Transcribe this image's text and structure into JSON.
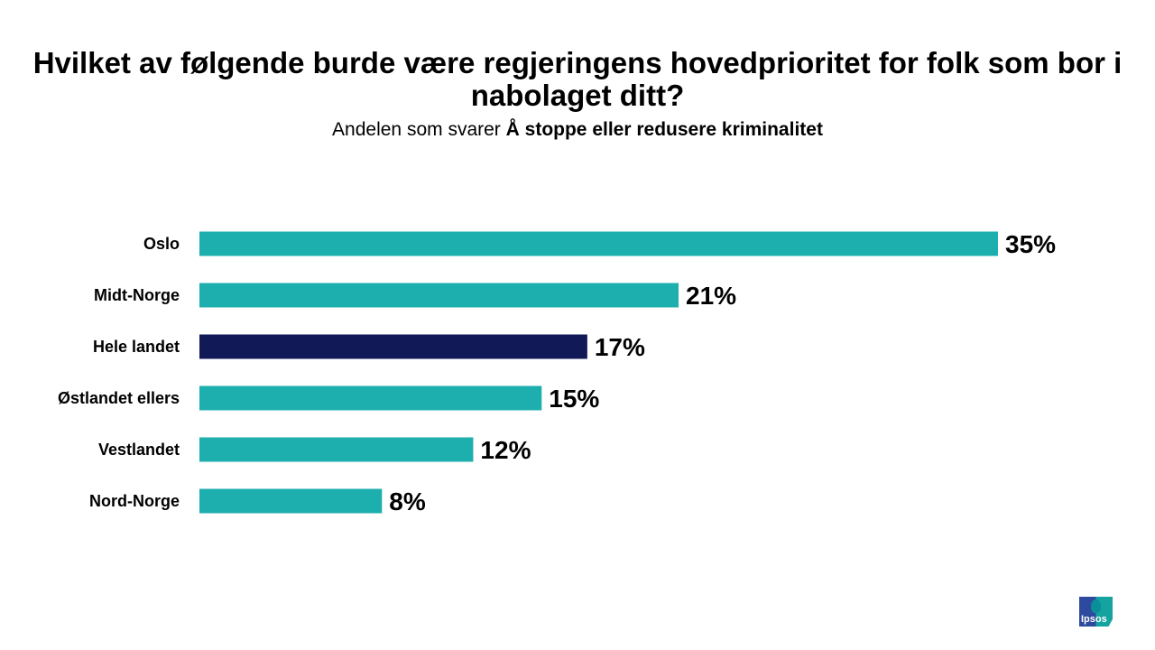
{
  "title": "Hvilket av følgende burde være regjeringens hovedprioritet for folk som bor i nabolaget ditt?",
  "subtitle_prefix": "Andelen som svarer",
  "subtitle_bold": "Å stoppe eller redusere kriminalitet",
  "logo_text": "Ipsos",
  "colors": {
    "default": "#1daeae",
    "highlight": "#111a57"
  },
  "chart_data": {
    "type": "bar",
    "orientation": "horizontal",
    "categories": [
      "Oslo",
      "Midt-Norge",
      "Hele landet",
      "Østlandet ellers",
      "Vestlandet",
      "Nord-Norge"
    ],
    "values": [
      35,
      21,
      17,
      15,
      12,
      8
    ],
    "data_labels": [
      "35%",
      "21%",
      "17%",
      "15%",
      "12%",
      "8%"
    ],
    "highlight": "Hele landet",
    "unit": "%",
    "grid": false
  }
}
